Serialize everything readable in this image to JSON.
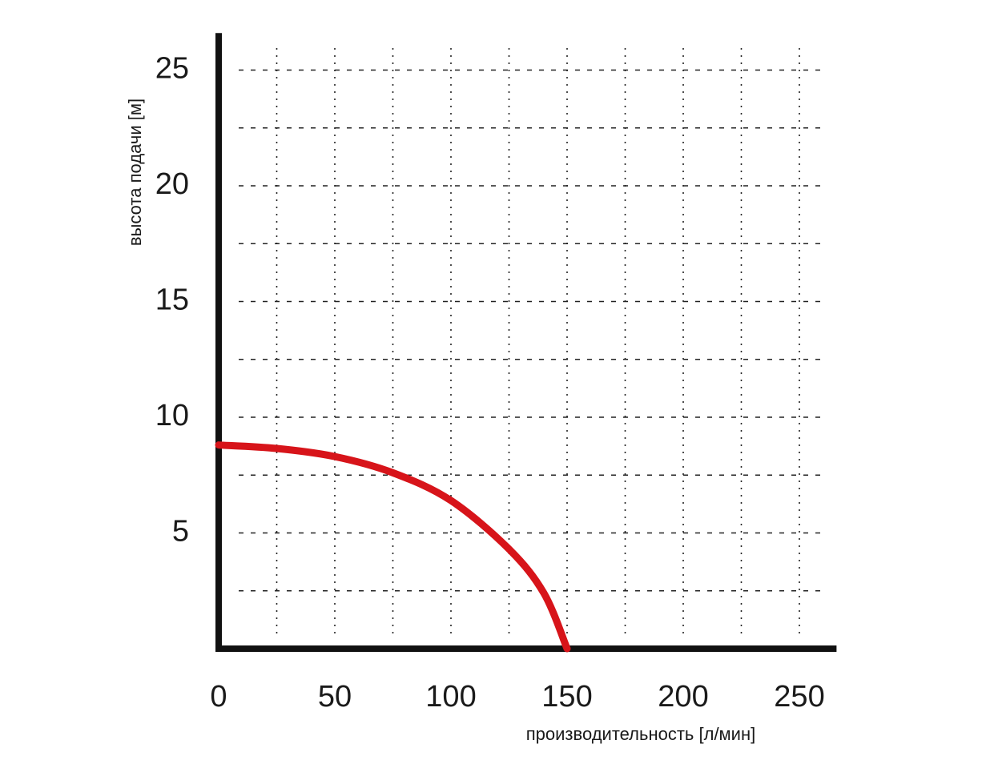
{
  "chart_data": {
    "type": "line",
    "x_label": "производительность [л/мин]",
    "y_label": "высота подачи [м]",
    "x": [
      0,
      25,
      50,
      75,
      100,
      125,
      140,
      150
    ],
    "series": [
      {
        "color": "#d7141a",
        "values": [
          8.8,
          8.65,
          8.3,
          7.6,
          6.4,
          4.3,
          2.4,
          0
        ]
      }
    ],
    "xlim": [
      0,
      266
    ],
    "ylim": [
      0,
      26.6
    ],
    "xticks": [
      0,
      50,
      100,
      150,
      200,
      250
    ],
    "yticks": [
      5,
      10,
      15,
      20,
      25
    ],
    "xgrid": [
      25,
      50,
      75,
      100,
      125,
      150,
      175,
      200,
      225,
      250
    ],
    "ygrid": [
      2.5,
      5,
      7.5,
      10,
      12.5,
      15,
      17.5,
      20,
      22.5,
      25
    ],
    "grid": true
  }
}
